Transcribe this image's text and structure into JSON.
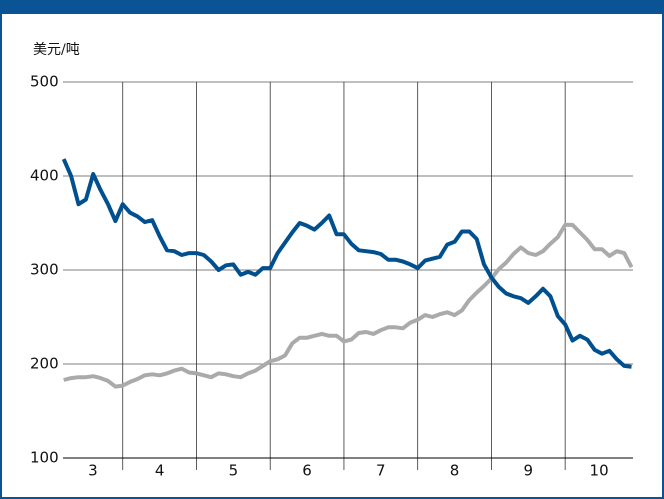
{
  "chart_data": {
    "type": "line",
    "unit_label": "美元/吨",
    "x": [
      3.2,
      3.3,
      3.4,
      3.5,
      3.6,
      3.7,
      3.8,
      3.9,
      4.0,
      4.1,
      4.2,
      4.3,
      4.4,
      4.5,
      4.6,
      4.7,
      4.8,
      4.9,
      5.0,
      5.1,
      5.2,
      5.3,
      5.4,
      5.5,
      5.6,
      5.7,
      5.8,
      5.9,
      6.0,
      6.1,
      6.2,
      6.3,
      6.4,
      6.5,
      6.6,
      6.7,
      6.8,
      6.9,
      7.0,
      7.1,
      7.2,
      7.3,
      7.4,
      7.5,
      7.6,
      7.7,
      7.8,
      7.9,
      8.0,
      8.1,
      8.2,
      8.3,
      8.4,
      8.5,
      8.6,
      8.7,
      8.8,
      8.9,
      9.0,
      9.1,
      9.2,
      9.3,
      9.4,
      9.5,
      9.6,
      9.7,
      9.8,
      9.9,
      10.0,
      10.1,
      10.2,
      10.3,
      10.4,
      10.5,
      10.6,
      10.7,
      10.8,
      10.9
    ],
    "series": [
      {
        "color": "#00508f",
        "values": [
          418,
          400,
          370,
          375,
          402,
          385,
          370,
          352,
          370,
          361,
          357,
          351,
          353,
          336,
          321,
          320,
          316,
          318,
          318,
          316,
          309,
          300,
          305,
          306,
          295,
          298,
          295,
          302,
          302,
          318,
          329,
          340,
          350,
          347,
          343,
          350,
          358,
          338,
          338,
          328,
          321,
          320,
          319,
          317,
          311,
          311,
          309,
          306,
          302,
          310,
          312,
          314,
          327,
          330,
          341,
          341,
          333,
          306,
          292,
          282,
          275,
          272,
          270,
          265,
          272,
          280,
          272,
          251,
          242,
          225,
          230,
          226,
          215,
          211,
          214,
          205,
          198,
          197
        ]
      },
      {
        "color": "#aaaaaa",
        "values": [
          183,
          185,
          186,
          186,
          187,
          185,
          182,
          176,
          177,
          181,
          184,
          188,
          189,
          188,
          190,
          193,
          195,
          191,
          190,
          188,
          186,
          190,
          189,
          187,
          186,
          190,
          193,
          198,
          203,
          205,
          209,
          222,
          228,
          228,
          230,
          232,
          230,
          230,
          224,
          226,
          233,
          234,
          232,
          236,
          239,
          239,
          238,
          244,
          247,
          252,
          250,
          253,
          255,
          252,
          257,
          268,
          276,
          283,
          291,
          301,
          308,
          317,
          324,
          318,
          316,
          320,
          328,
          335,
          348,
          348,
          340,
          332,
          322,
          322,
          315,
          320,
          318,
          303
        ]
      }
    ],
    "xlim": [
      3.19,
      10.92
    ],
    "xticks": [
      3,
      4,
      5,
      6,
      7,
      8,
      9,
      10
    ],
    "ylim": [
      100,
      500
    ],
    "yticks": [
      100,
      200,
      300,
      400,
      500
    ],
    "grid": true
  }
}
